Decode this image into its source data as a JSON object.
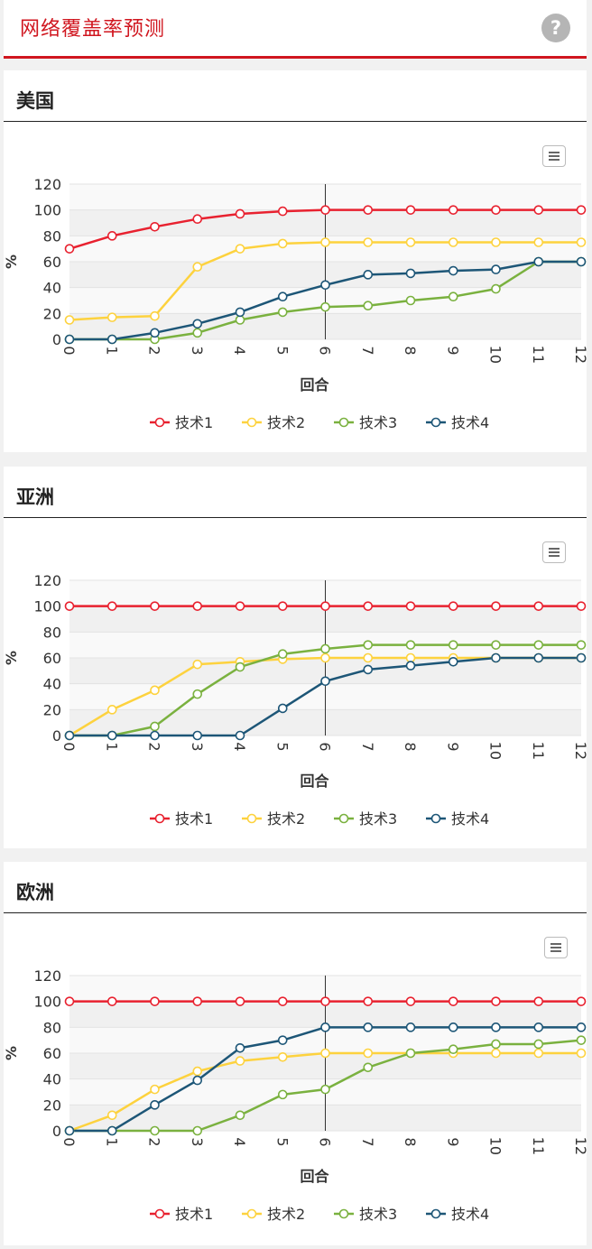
{
  "header": {
    "title": "网络覆盖率预测",
    "help_icon": "?"
  },
  "colors": {
    "accent": "#d0161f",
    "series": [
      "#e8212f",
      "#fdd23e",
      "#7ab13f",
      "#1d5677"
    ]
  },
  "icons": {
    "help": "question-mark-icon",
    "menu": "hamburger-menu-icon"
  },
  "panels": [
    {
      "title": "美国",
      "chart_data": {
        "type": "line",
        "title": "",
        "xlabel": "回合",
        "ylabel": "%",
        "x": [
          0,
          1,
          2,
          3,
          4,
          5,
          6,
          7,
          8,
          9,
          10,
          11,
          12
        ],
        "ylim": [
          0,
          120
        ],
        "yticks": [
          0,
          20,
          40,
          60,
          80,
          100,
          120
        ],
        "plot_bands": true,
        "marker_line_x": 6,
        "legend_position": "bottom-center",
        "series": [
          {
            "name": "技术1",
            "values": [
              70,
              80,
              87,
              93,
              97,
              99,
              100,
              100,
              100,
              100,
              100,
              100,
              100
            ]
          },
          {
            "name": "技术2",
            "values": [
              15,
              17,
              18,
              56,
              70,
              74,
              75,
              75,
              75,
              75,
              75,
              75,
              75
            ]
          },
          {
            "name": "技术3",
            "values": [
              0,
              0,
              0,
              5,
              15,
              21,
              25,
              26,
              30,
              33,
              39,
              60,
              60
            ]
          },
          {
            "name": "技术4",
            "values": [
              0,
              0,
              5,
              12,
              21,
              33,
              42,
              50,
              51,
              53,
              54,
              60,
              60
            ]
          }
        ]
      }
    },
    {
      "title": "亚洲",
      "chart_data": {
        "type": "line",
        "title": "",
        "xlabel": "回合",
        "ylabel": "%",
        "x": [
          0,
          1,
          2,
          3,
          4,
          5,
          6,
          7,
          8,
          9,
          10,
          11,
          12
        ],
        "ylim": [
          0,
          120
        ],
        "yticks": [
          0,
          20,
          40,
          60,
          80,
          100,
          120
        ],
        "plot_bands": true,
        "marker_line_x": 6,
        "legend_position": "bottom-center",
        "series": [
          {
            "name": "技术1",
            "values": [
              100,
              100,
              100,
              100,
              100,
              100,
              100,
              100,
              100,
              100,
              100,
              100,
              100
            ]
          },
          {
            "name": "技术2",
            "values": [
              0,
              20,
              35,
              55,
              57,
              59,
              60,
              60,
              60,
              60,
              60,
              60,
              60
            ]
          },
          {
            "name": "技术3",
            "values": [
              0,
              0,
              7,
              32,
              53,
              63,
              67,
              70,
              70,
              70,
              70,
              70,
              70
            ]
          },
          {
            "name": "技术4",
            "values": [
              0,
              0,
              0,
              0,
              0,
              21,
              42,
              51,
              54,
              57,
              60,
              60,
              60
            ]
          }
        ]
      }
    },
    {
      "title": "欧洲",
      "chart_data": {
        "type": "line",
        "title": "",
        "xlabel": "回合",
        "ylabel": "%",
        "x": [
          0,
          1,
          2,
          3,
          4,
          5,
          6,
          7,
          8,
          9,
          10,
          11,
          12
        ],
        "ylim": [
          0,
          120
        ],
        "yticks": [
          0,
          20,
          40,
          60,
          80,
          100,
          120
        ],
        "plot_bands": true,
        "marker_line_x": 6,
        "legend_position": "bottom-center",
        "series": [
          {
            "name": "技术1",
            "values": [
              100,
              100,
              100,
              100,
              100,
              100,
              100,
              100,
              100,
              100,
              100,
              100,
              100
            ]
          },
          {
            "name": "技术2",
            "values": [
              0,
              12,
              32,
              46,
              54,
              57,
              60,
              60,
              60,
              60,
              60,
              60,
              60
            ]
          },
          {
            "name": "技术3",
            "values": [
              0,
              0,
              0,
              0,
              12,
              28,
              32,
              49,
              60,
              63,
              67,
              67,
              70
            ]
          },
          {
            "name": "技术4",
            "values": [
              0,
              0,
              20,
              39,
              64,
              70,
              80,
              80,
              80,
              80,
              80,
              80,
              80
            ]
          }
        ]
      }
    }
  ]
}
